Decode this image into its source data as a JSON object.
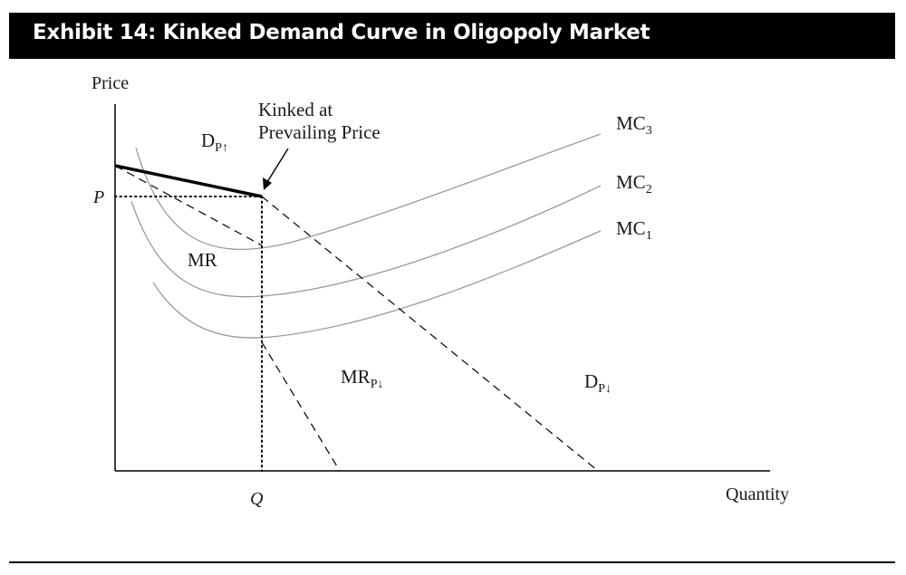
{
  "exhibit": {
    "title": "Exhibit 14: Kinked Demand Curve in Oligopoly Market"
  },
  "axes": {
    "y_label": "Price",
    "x_label": "Quantity",
    "p_tick": "P",
    "q_tick": "Q"
  },
  "annotation": {
    "line1": "Kinked at",
    "line2": "Prevailing Price"
  },
  "labels": {
    "d_up": {
      "main": "D",
      "sub": "P↑"
    },
    "mr": "MR",
    "mr_down": {
      "main": "MR",
      "sub": "P↓"
    },
    "d_down": {
      "main": "D",
      "sub": "P↓"
    },
    "mc3": {
      "main": "MC",
      "sub": "3"
    },
    "mc2": {
      "main": "MC",
      "sub": "2"
    },
    "mc1": {
      "main": "MC",
      "sub": "1"
    }
  },
  "colors": {
    "cost_curves": "#9a9a9a",
    "lines": "#000000",
    "title_bg": "#000000",
    "title_text": "#ffffff"
  }
}
